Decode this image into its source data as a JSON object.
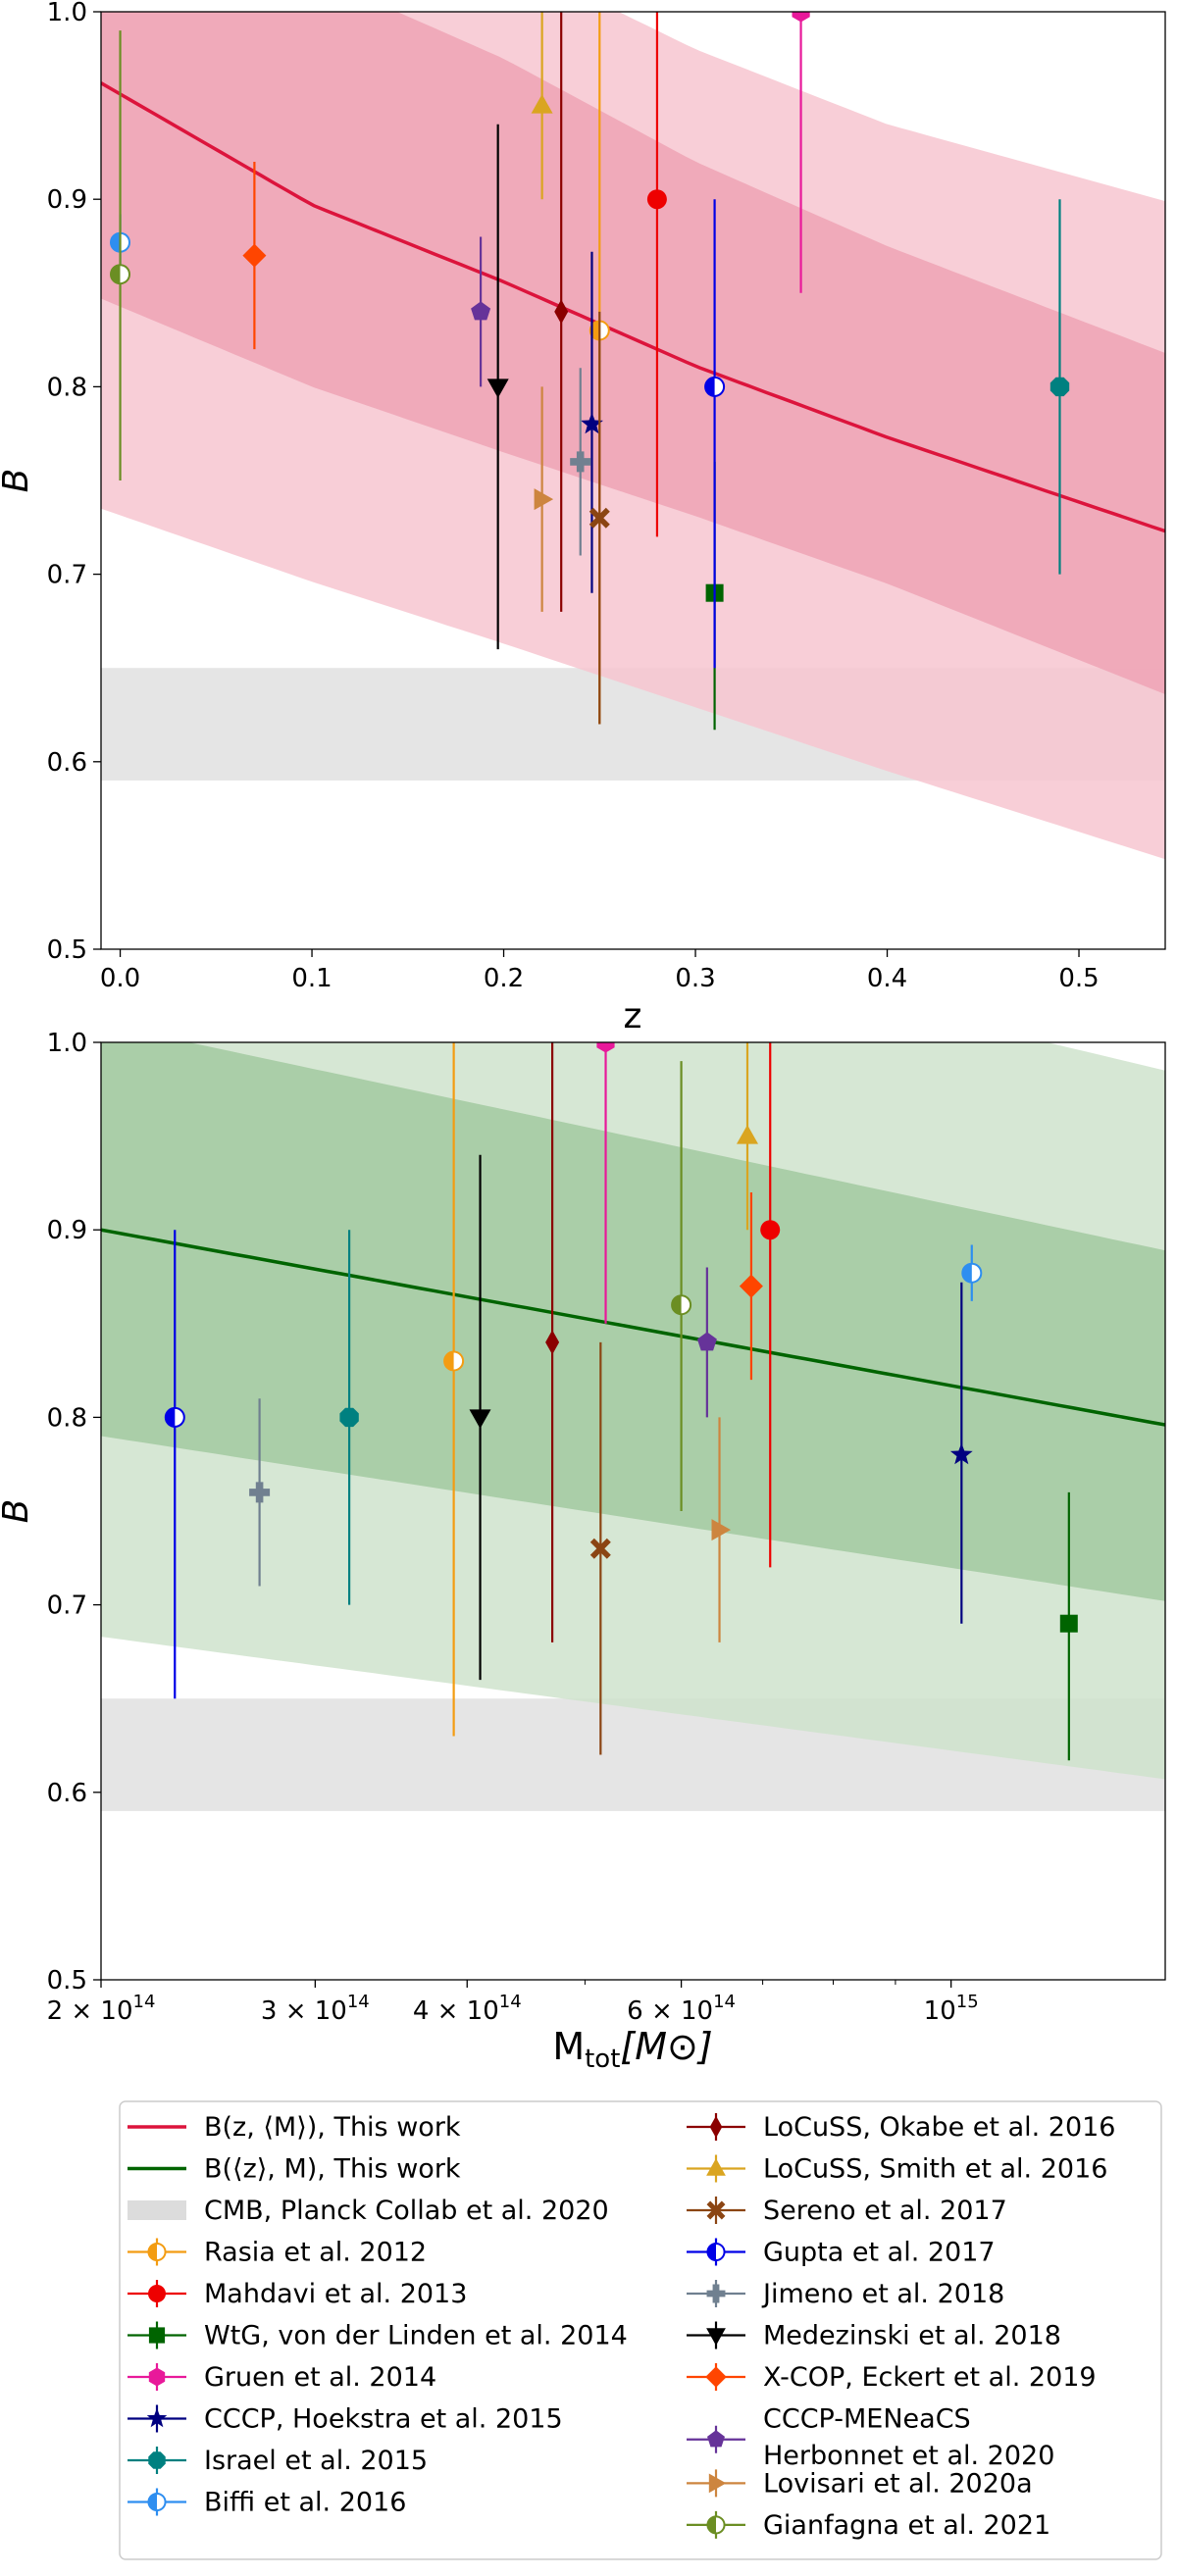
{
  "chart_data": [
    {
      "type": "scatter",
      "panel": "top",
      "xlabel": "z",
      "ylabel": "B",
      "xlim": [
        -0.01,
        0.545
      ],
      "ylim": [
        0.5,
        1.0
      ],
      "x_ticks": [
        0.0,
        0.1,
        0.2,
        0.3,
        0.4,
        0.5
      ],
      "x_tick_labels": [
        "0.0",
        "0.1",
        "0.2",
        "0.3",
        "0.4",
        "0.5"
      ],
      "y_ticks": [
        0.5,
        0.6,
        0.7,
        0.8,
        0.9,
        1.0
      ],
      "y_tick_labels": [
        "0.5",
        "0.6",
        "0.7",
        "0.8",
        "0.9",
        "1.0"
      ],
      "model": {
        "name": "B(z, ⟨M⟩), This work",
        "color": "#dc143c",
        "x": [
          -0.01,
          0.1,
          0.2,
          0.3,
          0.4,
          0.545
        ],
        "y": [
          0.962,
          0.897,
          0.856,
          0.811,
          0.773,
          0.723
        ],
        "band_outer_upper": [
          1.16,
          1.08,
          1.03,
          0.98,
          0.94,
          0.899
        ],
        "band_outer_lower": [
          0.735,
          0.696,
          0.663,
          0.629,
          0.595,
          0.548
        ],
        "band_inner_upper": [
          1.08,
          1.02,
          0.975,
          0.92,
          0.875,
          0.818
        ],
        "band_inner_lower": [
          0.847,
          0.8,
          0.765,
          0.731,
          0.695,
          0.636
        ],
        "band_outer_color": "#f7c6d0",
        "band_inner_color": "#eea3b5"
      },
      "cmb_band": [
        0.59,
        0.65
      ],
      "points": [
        {
          "series": "Rasia et al. 2012",
          "x": 0.25,
          "y": 0.83,
          "lo": 0.62,
          "hi": 1.05
        },
        {
          "series": "Mahdavi et al. 2013",
          "x": 0.28,
          "y": 0.9,
          "lo": 0.72,
          "hi": 1.05
        },
        {
          "series": "WtG, von der Linden et al. 2014",
          "x": 0.31,
          "y": 0.69,
          "lo": 0.617,
          "hi": 0.76
        },
        {
          "series": "Gruen et al. 2014",
          "x": 0.355,
          "y": 1.0,
          "lo": 0.85,
          "hi": 1.05
        },
        {
          "series": "CCCP, Hoekstra et al. 2015",
          "x": 0.246,
          "y": 0.78,
          "lo": 0.69,
          "hi": 0.872
        },
        {
          "series": "Israel et al. 2015",
          "x": 0.49,
          "y": 0.8,
          "lo": 0.7,
          "hi": 0.9
        },
        {
          "series": "Biffi et al. 2016",
          "x": 0.0,
          "y": 0.877,
          "lo": 0.862,
          "hi": 0.892
        },
        {
          "series": "LoCuSS, Okabe et al. 2016",
          "x": 0.23,
          "y": 0.84,
          "lo": 0.68,
          "hi": 1.05
        },
        {
          "series": "LoCuSS, Smith et al. 2016",
          "x": 0.22,
          "y": 0.95,
          "lo": 0.9,
          "hi": 1.05
        },
        {
          "series": "Sereno et al. 2017",
          "x": 0.25,
          "y": 0.73,
          "lo": 0.62,
          "hi": 0.84
        },
        {
          "series": "Gupta et al. 2017",
          "x": 0.31,
          "y": 0.8,
          "lo": 0.65,
          "hi": 0.9
        },
        {
          "series": "Jimeno et al. 2018",
          "x": 0.24,
          "y": 0.76,
          "lo": 0.71,
          "hi": 0.81
        },
        {
          "series": "Medezinski et al. 2018",
          "x": 0.197,
          "y": 0.8,
          "lo": 0.66,
          "hi": 0.94
        },
        {
          "series": "X-COP, Eckert et al. 2019",
          "x": 0.07,
          "y": 0.87,
          "lo": 0.82,
          "hi": 0.92
        },
        {
          "series": "CCCP-MENeaCS Herbonnet et al. 2020",
          "x": 0.188,
          "y": 0.84,
          "lo": 0.8,
          "hi": 0.88
        },
        {
          "series": "Lovisari et al. 2020a",
          "x": 0.22,
          "y": 0.74,
          "lo": 0.68,
          "hi": 0.8
        },
        {
          "series": "Gianfagna et al. 2021",
          "x": 0.0,
          "y": 0.86,
          "lo": 0.75,
          "hi": 0.99
        }
      ]
    },
    {
      "type": "scatter",
      "panel": "bottom",
      "xscale": "log",
      "xlabel": "M",
      "xlabel_sub": "tot",
      "xlabel_unit": "[M⊙]",
      "ylabel": "B",
      "xlim": [
        200000000000000.0,
        1500000000000000.0
      ],
      "ylim": [
        0.5,
        1.0
      ],
      "x_ticks": [
        200000000000000.0,
        300000000000000.0,
        400000000000000.0,
        600000000000000.0,
        1000000000000000.0
      ],
      "x_tick_labels": [
        {
          "mant": "2 × 10",
          "exp": "14"
        },
        {
          "mant": "3 × 10",
          "exp": "14"
        },
        {
          "mant": "4 × 10",
          "exp": "14"
        },
        {
          "mant": "6 × 10",
          "exp": "14"
        },
        {
          "mant": "10",
          "exp": "15"
        }
      ],
      "y_ticks": [
        0.5,
        0.6,
        0.7,
        0.8,
        0.9,
        1.0
      ],
      "y_tick_labels": [
        "0.5",
        "0.6",
        "0.7",
        "0.8",
        "0.9",
        "1.0"
      ],
      "model": {
        "name": "B(⟨z⟩, M), This work",
        "color": "#006400",
        "x": [
          200000000000000.0,
          1500000000000000.0
        ],
        "y": [
          0.9,
          0.796
        ],
        "band_outer_upper": [
          1.12,
          0.985
        ],
        "band_outer_lower": [
          0.683,
          0.607
        ],
        "band_inner_upper": [
          1.01,
          0.889
        ],
        "band_inner_lower": [
          0.79,
          0.702
        ],
        "band_outer_color": "#cfe3cc",
        "band_inner_color": "#a2c9a0"
      },
      "cmb_band": [
        0.59,
        0.65
      ],
      "points": [
        {
          "series": "Rasia et al. 2012",
          "x": 390000000000000.0,
          "y": 0.83,
          "lo": 0.63,
          "hi": 1.05
        },
        {
          "series": "Mahdavi et al. 2013",
          "x": 710000000000000.0,
          "y": 0.9,
          "lo": 0.72,
          "hi": 1.05
        },
        {
          "series": "WtG, von der Linden et al. 2014",
          "x": 1250000000000000.0,
          "y": 0.69,
          "lo": 0.617,
          "hi": 0.76
        },
        {
          "series": "Gruen et al. 2014",
          "x": 520000000000000.0,
          "y": 1.0,
          "lo": 0.85,
          "hi": 1.05
        },
        {
          "series": "CCCP, Hoekstra et al. 2015",
          "x": 1020000000000000.0,
          "y": 0.78,
          "lo": 0.69,
          "hi": 0.872
        },
        {
          "series": "Israel et al. 2015",
          "x": 320000000000000.0,
          "y": 0.8,
          "lo": 0.7,
          "hi": 0.9
        },
        {
          "series": "Biffi et al. 2016",
          "x": 1040000000000000.0,
          "y": 0.877,
          "lo": 0.862,
          "hi": 0.892
        },
        {
          "series": "LoCuSS, Okabe et al. 2016",
          "x": 470000000000000.0,
          "y": 0.84,
          "lo": 0.68,
          "hi": 1.05
        },
        {
          "series": "LoCuSS, Smith et al. 2016",
          "x": 680000000000000.0,
          "y": 0.95,
          "lo": 0.9,
          "hi": 1.05
        },
        {
          "series": "Sereno et al. 2017",
          "x": 515000000000000.0,
          "y": 0.73,
          "lo": 0.62,
          "hi": 0.84
        },
        {
          "series": "Gupta et al. 2017",
          "x": 230000000000000.0,
          "y": 0.8,
          "lo": 0.65,
          "hi": 0.9
        },
        {
          "series": "Jimeno et al. 2018",
          "x": 270000000000000.0,
          "y": 0.76,
          "lo": 0.71,
          "hi": 0.81
        },
        {
          "series": "Medezinski et al. 2018",
          "x": 410000000000000.0,
          "y": 0.8,
          "lo": 0.66,
          "hi": 0.94
        },
        {
          "series": "X-COP, Eckert et al. 2019",
          "x": 685000000000000.0,
          "y": 0.87,
          "lo": 0.82,
          "hi": 0.92
        },
        {
          "series": "CCCP-MENeaCS Herbonnet et al. 2020",
          "x": 630000000000000.0,
          "y": 0.84,
          "lo": 0.8,
          "hi": 0.88
        },
        {
          "series": "Lovisari et al. 2020a",
          "x": 645000000000000.0,
          "y": 0.74,
          "lo": 0.68,
          "hi": 0.8
        },
        {
          "series": "Gianfagna et al. 2021",
          "x": 600000000000000.0,
          "y": 0.86,
          "lo": 0.75,
          "hi": 0.99
        }
      ]
    }
  ],
  "legend": {
    "placement": "below",
    "columns": [
      [
        {
          "label": "B(z, ⟨M⟩), This work",
          "kind": "line",
          "color": "#dc143c"
        },
        {
          "label": "B(⟨z⟩, M), This work",
          "kind": "line",
          "color": "#006400"
        },
        {
          "label": "CMB, Planck Collab et al. 2020",
          "kind": "patch",
          "color": "#dcdcdc"
        },
        {
          "label": "Rasia et al. 2012",
          "kind": "marker",
          "series": "Rasia et al. 2012"
        },
        {
          "label": "Mahdavi et al. 2013",
          "kind": "marker",
          "series": "Mahdavi et al. 2013"
        },
        {
          "label": "WtG, von der Linden et al. 2014",
          "kind": "marker",
          "series": "WtG, von der Linden et al. 2014"
        },
        {
          "label": "Gruen et al. 2014",
          "kind": "marker",
          "series": "Gruen et al. 2014"
        },
        {
          "label": "CCCP, Hoekstra et al. 2015",
          "kind": "marker",
          "series": "CCCP, Hoekstra et al. 2015"
        },
        {
          "label": "Israel et al. 2015",
          "kind": "marker",
          "series": "Israel et al. 2015"
        },
        {
          "label": "Biffi et al. 2016",
          "kind": "marker",
          "series": "Biffi et al. 2016"
        }
      ],
      [
        {
          "label": "LoCuSS, Okabe et al. 2016",
          "kind": "marker",
          "series": "LoCuSS, Okabe et al. 2016"
        },
        {
          "label": "LoCuSS, Smith et al. 2016",
          "kind": "marker",
          "series": "LoCuSS, Smith et al. 2016"
        },
        {
          "label": "Sereno et al. 2017",
          "kind": "marker",
          "series": "Sereno et al. 2017"
        },
        {
          "label": "Gupta et al. 2017",
          "kind": "marker",
          "series": "Gupta et al. 2017"
        },
        {
          "label": "Jimeno et al. 2018",
          "kind": "marker",
          "series": "Jimeno et al. 2018"
        },
        {
          "label": "Medezinski et al. 2018",
          "kind": "marker",
          "series": "Medezinski et al. 2018"
        },
        {
          "label": "X-COP, Eckert et al. 2019",
          "kind": "marker",
          "series": "X-COP, Eckert et al. 2019"
        },
        {
          "label": "CCCP-MENeaCS",
          "label2": " Herbonnet et al. 2020",
          "kind": "marker",
          "series": "CCCP-MENeaCS Herbonnet et al. 2020"
        },
        {
          "label": "Lovisari et al. 2020a",
          "kind": "marker",
          "series": "Lovisari et al. 2020a"
        },
        {
          "label": "Gianfagna et al. 2021",
          "kind": "marker",
          "series": "Gianfagna et al. 2021"
        }
      ]
    ]
  },
  "series_styles": {
    "Rasia et al. 2012": {
      "color": "#f39c12",
      "marker": "half-circle"
    },
    "Mahdavi et al. 2013": {
      "color": "#ee0000",
      "marker": "circle"
    },
    "WtG, von der Linden et al. 2014": {
      "color": "#006400",
      "marker": "square"
    },
    "Gruen et al. 2014": {
      "color": "#e8199a",
      "marker": "hexagon"
    },
    "CCCP, Hoekstra et al. 2015": {
      "color": "#000080",
      "marker": "star"
    },
    "Israel et al. 2015": {
      "color": "#008080",
      "marker": "octagon"
    },
    "Biffi et al. 2016": {
      "color": "#2e8ef0",
      "marker": "half-circle"
    },
    "LoCuSS, Okabe et al. 2016": {
      "color": "#8b0000",
      "marker": "thin-diamond"
    },
    "LoCuSS, Smith et al. 2016": {
      "color": "#daa520",
      "marker": "triangle-up"
    },
    "Sereno et al. 2017": {
      "color": "#8b4513",
      "marker": "x-filled"
    },
    "Gupta et al. 2017": {
      "color": "#0000e6",
      "marker": "half-circle"
    },
    "Jimeno et al. 2018": {
      "color": "#708090",
      "marker": "plus-filled"
    },
    "Medezinski et al. 2018": {
      "color": "#000000",
      "marker": "triangle-down"
    },
    "X-COP, Eckert et al. 2019": {
      "color": "#ff4500",
      "marker": "diamond"
    },
    "CCCP-MENeaCS Herbonnet et al. 2020": {
      "color": "#663399",
      "marker": "pentagon"
    },
    "Lovisari et al. 2020a": {
      "color": "#cd853f",
      "marker": "triangle-right"
    },
    "Gianfagna et al. 2021": {
      "color": "#6b8e23",
      "marker": "half-circle"
    }
  },
  "colors": {
    "cmb_band": "#dcdcdc",
    "legend_border": "#cccccc"
  }
}
